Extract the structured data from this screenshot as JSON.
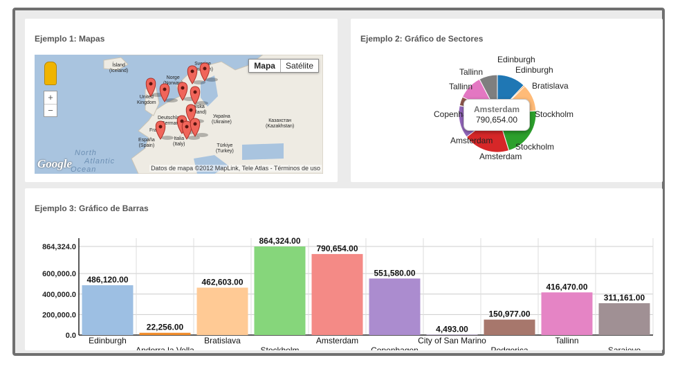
{
  "panels": {
    "map_title": "Ejemplo 1: Mapas",
    "pie_title": "Ejemplo 2: Gráfico de Sectores",
    "bar_title": "Ejemplo 3: Gráfico de Barras"
  },
  "map": {
    "map_button": "Mapa",
    "satellite_button": "Satélite",
    "zoom_in": "+",
    "zoom_out": "−",
    "google_logo": "Google",
    "copyright": "Datos de mapa ©2012 MapLink, Tele Atlas - Términos de uso",
    "sea_labels": [
      "North",
      "Atlantic",
      "Ocean"
    ],
    "labels": [
      {
        "text": "Ísland\n(Iceland)"
      },
      {
        "text": "Norge\n(Norway)"
      },
      {
        "text": "Sverige\n(Sweden)"
      },
      {
        "text": "United\nKingdom"
      },
      {
        "text": "Deutschland\n(Germany)"
      },
      {
        "text": "Polska\n(Poland)"
      },
      {
        "text": "Україна\n(Ukraine)"
      },
      {
        "text": "Казахстан\n(Kazakhstan)"
      },
      {
        "text": "France"
      },
      {
        "text": "España\n(Spain)"
      },
      {
        "text": "Italia\n(Italy)"
      },
      {
        "text": "Türkiye\n(Turkey)"
      }
    ],
    "marker_count": 11
  },
  "tooltip": {
    "name": "Amsterdam",
    "value": "790,654.00"
  },
  "chart_data": [
    {
      "type": "pie",
      "title": "Ejemplo 2: Gráfico de Sectores",
      "slices": [
        {
          "name": "Edinburgh",
          "value": 486120.0,
          "color": "#1f77b4"
        },
        {
          "name": "Andorra la Vella",
          "value": 22256.0,
          "color": "#ff7f0e"
        },
        {
          "name": "Bratislava",
          "value": 462603.0,
          "color": "#ffbb78"
        },
        {
          "name": "Stockholm",
          "value": 864324.0,
          "color": "#2ca02c"
        },
        {
          "name": "Amsterdam",
          "value": 790654.0,
          "color": "#d62728"
        },
        {
          "name": "Copenhagen",
          "value": 551580.0,
          "color": "#9467bd"
        },
        {
          "name": "City of San Marino",
          "value": 4493.0,
          "color": "#c5b0d5"
        },
        {
          "name": "Podgorica",
          "value": 150977.0,
          "color": "#8c564b"
        },
        {
          "name": "Tallinn",
          "value": 416470.0,
          "color": "#e377c2"
        },
        {
          "name": "Sarajevo",
          "value": 311161.0,
          "color": "#7f7f7f"
        }
      ],
      "labels": [
        {
          "text": "Edinburgh"
        },
        {
          "text": "Edinburgh"
        },
        {
          "text": "Bratislava"
        },
        {
          "text": "Stockholm"
        },
        {
          "text": "Stockholm"
        },
        {
          "text": "Amsterdam"
        },
        {
          "text": "Amsterdam"
        },
        {
          "text": "Copenhagen"
        },
        {
          "text": "Tallinn"
        },
        {
          "text": "Tallinn"
        }
      ]
    },
    {
      "type": "bar",
      "title": "Ejemplo 3: Gráfico de Barras",
      "categories": [
        "Edinburgh",
        "Andorra la Vella",
        "Bratislava",
        "Stockholm",
        "Amsterdam",
        "Copenhagen",
        "City of San Marino",
        "Podgorica",
        "Tallinn",
        "Sarajevo"
      ],
      "values": [
        486120.0,
        22256.0,
        462603.0,
        864324.0,
        790654.0,
        551580.0,
        4493.0,
        150977.0,
        416470.0,
        311161.0
      ],
      "value_labels": [
        "486,120.00",
        "22,256.00",
        "462,603.00",
        "864,324.00",
        "790,654.00",
        "551,580.00",
        "4,493.00",
        "150,977.00",
        "416,470.00",
        "311,161.00"
      ],
      "colors": [
        "#9dbfe3",
        "#f08c2a",
        "#ffca95",
        "#86d67b",
        "#f48a86",
        "#ab8ccf",
        "#c9b3df",
        "#a7776c",
        "#e584c5",
        "#a09094"
      ],
      "ylim": [
        0,
        864324
      ],
      "yticks": [
        0,
        200000,
        400000,
        600000,
        864324
      ],
      "ytick_labels": [
        "0.0",
        "200,000.0",
        "400,000.0",
        "600,000.0",
        "864,324.0"
      ],
      "grid": true,
      "xlabel": "",
      "ylabel": ""
    }
  ]
}
